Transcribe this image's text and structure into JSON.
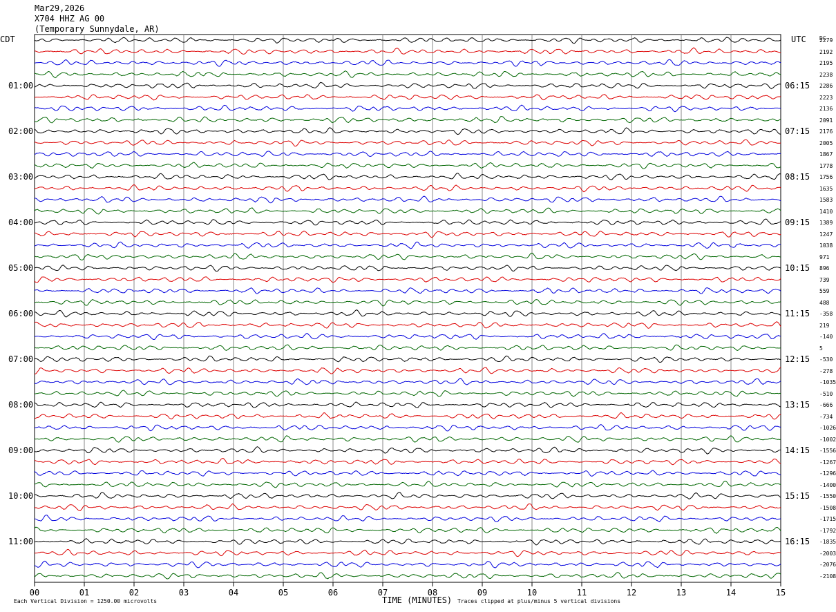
{
  "header": {
    "date": "Mar29,2026",
    "channel": "X704 HHZ AG 00",
    "station": "(Temporary Sunnydale, AR)"
  },
  "left_timezone": "CDT",
  "right_timezone": "UTC",
  "dc_header": "DC",
  "footer": {
    "scale_note": "Each Vertical Division = 1250.00 microvolts",
    "clip_note": "Traces clipped at plus/minus 5 vertical divisions",
    "x_axis_title": "TIME (MINUTES)"
  },
  "colors": {
    "trace_cycle": [
      "#000000",
      "#dd0000",
      "#0000dd",
      "#006600"
    ],
    "grid": "#888888"
  },
  "chart_data": {
    "type": "line",
    "xlabel": "TIME (MINUTES)",
    "xlim": [
      0,
      15
    ],
    "x_ticks": [
      "00",
      "01",
      "02",
      "03",
      "04",
      "05",
      "06",
      "07",
      "08",
      "09",
      "10",
      "11",
      "12",
      "13",
      "14",
      "15"
    ],
    "trace_count": 48,
    "minutes_per_trace": 15,
    "hour_labels_left": [
      "01:00",
      "02:00",
      "03:00",
      "04:00",
      "05:00",
      "06:00",
      "07:00",
      "08:00",
      "09:00",
      "10:00",
      "11:00"
    ],
    "hour_labels_right": [
      "06:15",
      "07:15",
      "08:15",
      "09:15",
      "10:15",
      "11:15",
      "12:15",
      "13:15",
      "14:15",
      "15:15",
      "16:15"
    ],
    "dc_offsets": [
      "2279",
      "2192",
      "2195",
      "2238",
      "2286",
      "2223",
      "2136",
      "2091",
      "2176",
      "2005",
      "1867",
      "1778",
      "1756",
      "1635",
      "1583",
      "1410",
      "1389",
      "1247",
      "1038",
      "971",
      "896",
      "739",
      "559",
      "488",
      "-358",
      "219",
      "-140",
      "5",
      "-530",
      "-278",
      "-1035",
      "-510",
      "-666",
      "-734",
      "-1026",
      "-1002",
      "-1556",
      "-1267",
      "-1296",
      "-1400",
      "-1550",
      "-1508",
      "-1715",
      "-1792",
      "-1835",
      "-2003",
      "-2076",
      "-2108"
    ]
  }
}
